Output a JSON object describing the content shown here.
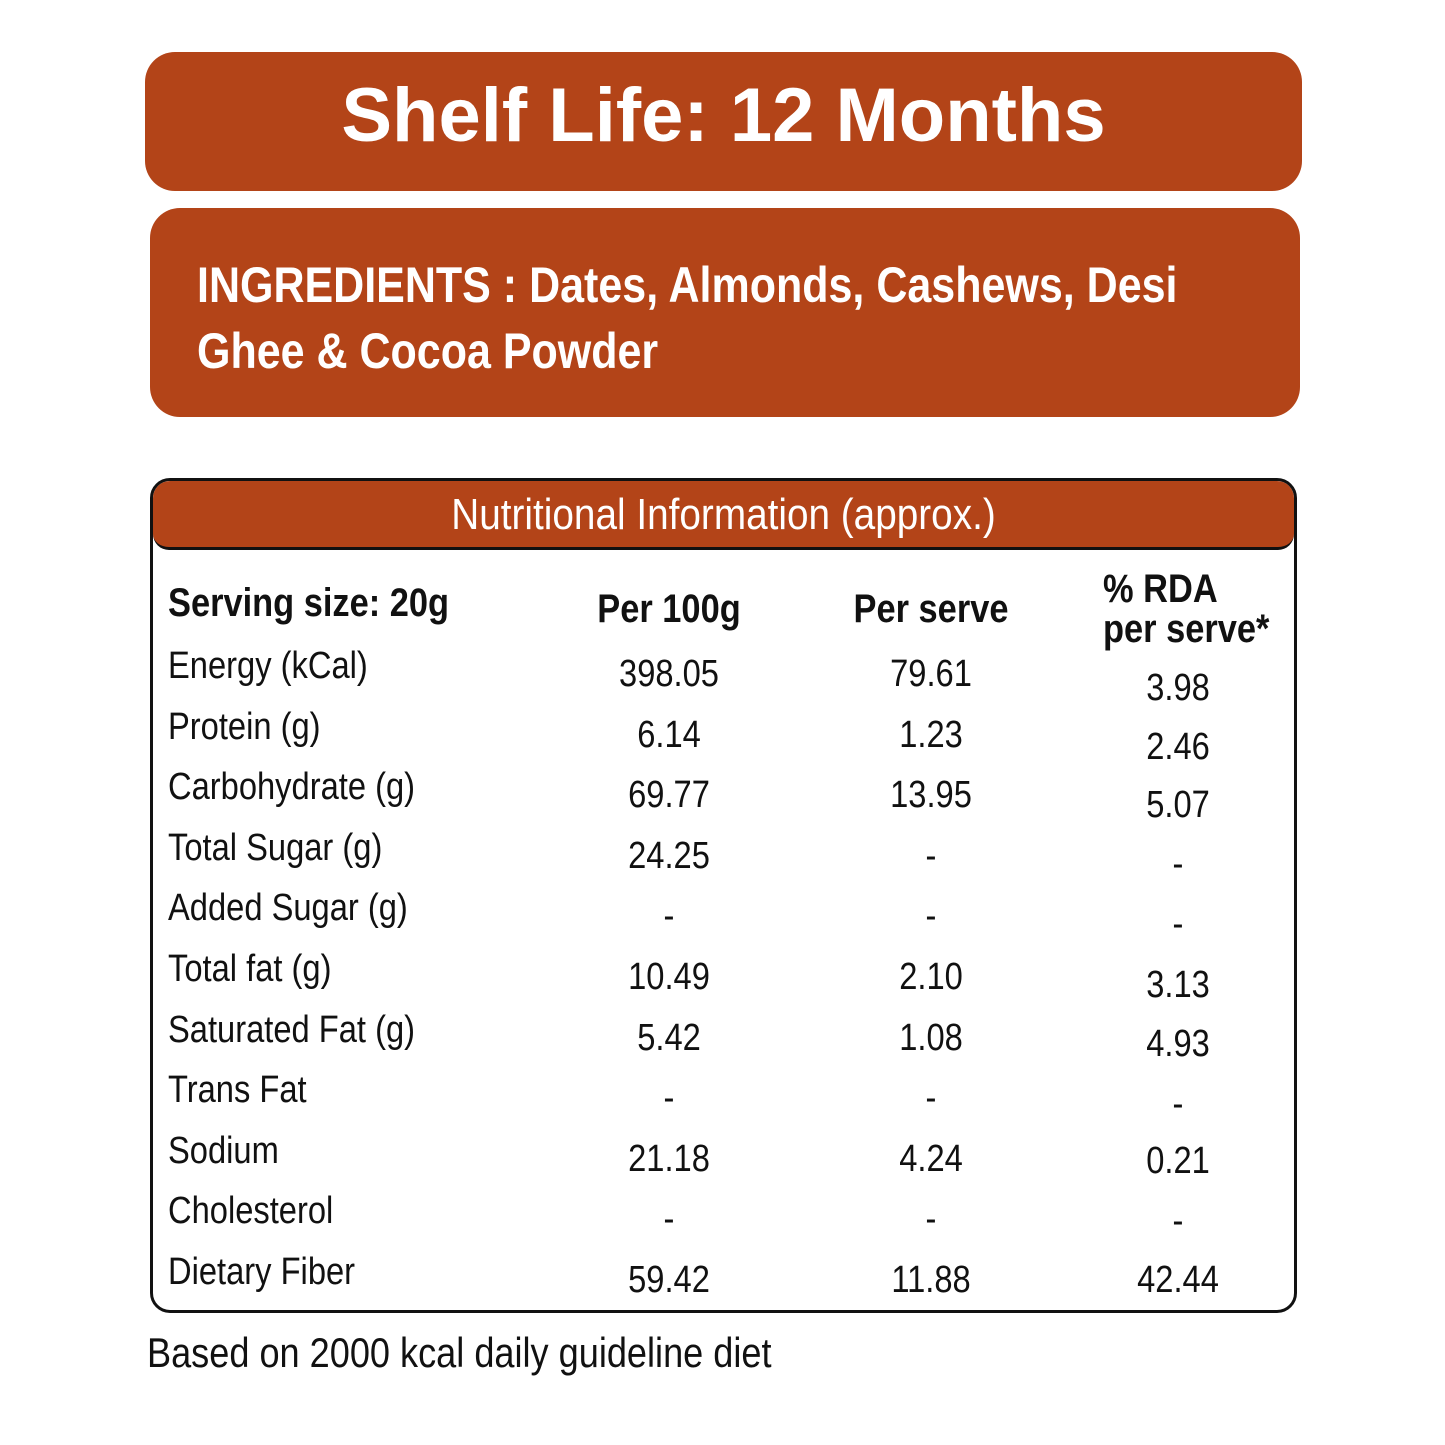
{
  "shelf_life": "Shelf Life: 12 Months",
  "ingredients": {
    "line1": "INGREDIENTS : Dates, Almonds, Cashews, Desi",
    "line2": "Ghee & Cocoa Powder"
  },
  "nutrition": {
    "title": "Nutritional Information (approx.)",
    "headers": {
      "serving": "Serving size: 20g",
      "per100": "Per 100g",
      "perserve": "Per serve",
      "rda_line1": "% RDA",
      "rda_line2": "per serve*"
    },
    "rows": [
      {
        "name": "Energy (kCal)",
        "per100": "398.05",
        "perserve": "79.61",
        "rda": "3.98"
      },
      {
        "name": "Protein (g)",
        "per100": "6.14",
        "perserve": "1.23",
        "rda": "2.46"
      },
      {
        "name": "Carbohydrate (g)",
        "per100": "69.77",
        "perserve": "13.95",
        "rda": "5.07"
      },
      {
        "name": "Total Sugar (g)",
        "per100": "24.25",
        "perserve": "-",
        "rda": "-"
      },
      {
        "name": "Added Sugar (g)",
        "per100": "-",
        "perserve": "-",
        "rda": "-"
      },
      {
        "name": "Total fat (g)",
        "per100": "10.49",
        "perserve": "2.10",
        "rda": "3.13"
      },
      {
        "name": "Saturated Fat (g)",
        "per100": "5.42",
        "perserve": "1.08",
        "rda": "4.93"
      },
      {
        "name": "Trans Fat",
        "per100": "-",
        "perserve": "-",
        "rda": "-"
      },
      {
        "name": "Sodium",
        "per100": "21.18",
        "perserve": "4.24",
        "rda": "0.21"
      },
      {
        "name": "Cholesterol",
        "per100": "-",
        "perserve": "-",
        "rda": "-"
      },
      {
        "name": "Dietary Fiber",
        "per100": "59.42",
        "perserve": "11.88",
        "rda": "42.44"
      }
    ]
  },
  "footer": "Based on 2000 kcal daily guideline diet",
  "colors": {
    "accent": "#b34418",
    "text": "#111111"
  }
}
